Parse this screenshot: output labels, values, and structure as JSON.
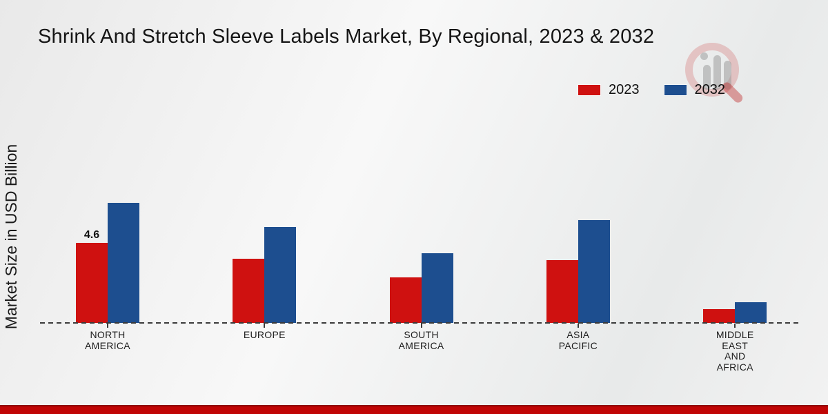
{
  "title": "Shrink And Stretch Sleeve Labels Market, By Regional, 2023 & 2032",
  "y_axis_label": "Market Size in USD Billion",
  "legend": {
    "items": [
      {
        "label": "2023",
        "color": "#cf1110"
      },
      {
        "label": "2032",
        "color": "#1d4e8f"
      }
    ]
  },
  "watermark_icon": "market-research-logo",
  "accent_colors": {
    "bottom_bar": "#c00505",
    "bottom_bar_edge": "#8e0303",
    "axis_line": "#3a3a3a"
  },
  "chart_data": {
    "type": "bar",
    "title": "Shrink And Stretch Sleeve Labels Market, By Regional, 2023 & 2032",
    "xlabel": "",
    "ylabel": "Market Size in USD Billion",
    "ylim": [
      0,
      8
    ],
    "grid": false,
    "legend_position": "top-right",
    "categories": [
      "NORTH AMERICA",
      "EUROPE",
      "SOUTH AMERICA",
      "ASIA PACIFIC",
      "MIDDLE EAST AND AFRICA"
    ],
    "category_label_lines": [
      [
        "NORTH",
        "AMERICA"
      ],
      [
        "EUROPE"
      ],
      [
        "SOUTH",
        "AMERICA"
      ],
      [
        "ASIA",
        "PACIFIC"
      ],
      [
        "MIDDLE",
        "EAST",
        "AND",
        "AFRICA"
      ]
    ],
    "series": [
      {
        "name": "2023",
        "color": "#cf1110",
        "values": [
          4.6,
          3.7,
          2.6,
          3.6,
          0.8
        ]
      },
      {
        "name": "2032",
        "color": "#1d4e8f",
        "values": [
          6.9,
          5.5,
          4.0,
          5.9,
          1.2
        ]
      }
    ],
    "annotations": [
      {
        "series_index": 0,
        "category_index": 0,
        "text": "4.6"
      }
    ]
  }
}
